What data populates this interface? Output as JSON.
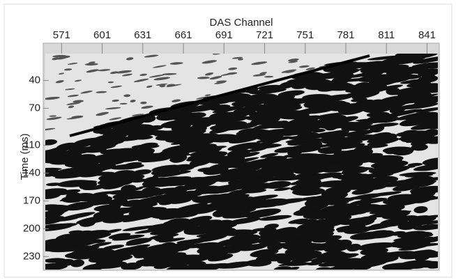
{
  "chart_data": {
    "type": "seismic",
    "title": "DAS Channel",
    "y_label": "Time (ms)",
    "xlim": [
      559,
      849
    ],
    "xticks": [
      571,
      601,
      631,
      661,
      691,
      721,
      751,
      781,
      811,
      841
    ],
    "ylim": [
      244,
      11
    ],
    "yticks": [
      40,
      70,
      110,
      140,
      170,
      200,
      230
    ]
  }
}
